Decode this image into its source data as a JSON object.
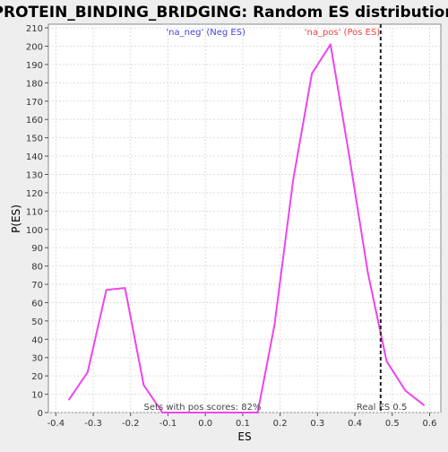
{
  "chart_data": {
    "type": "line",
    "title": "PROTEIN_BINDING_BRIDGING: Random ES distribution",
    "xlabel": "ES",
    "ylabel": "P(ES)",
    "xlim": [
      -0.42,
      0.63
    ],
    "ylim": [
      0,
      212
    ],
    "x_ticks": [
      -0.4,
      -0.3,
      -0.2,
      -0.1,
      0.0,
      0.1,
      0.2,
      0.3,
      0.4,
      0.5,
      0.6
    ],
    "x_tick_labels": [
      "-0.4",
      "-0.3",
      "-0.2",
      "-0.1",
      "0.0",
      "0.1",
      "0.2",
      "0.3",
      "0.4",
      "0.5",
      "0.6"
    ],
    "y_ticks": [
      0,
      10,
      20,
      30,
      40,
      50,
      60,
      70,
      80,
      90,
      100,
      110,
      120,
      130,
      140,
      150,
      160,
      170,
      180,
      190,
      200,
      210
    ],
    "grid": true,
    "series": [
      {
        "color": "#ee44ee",
        "x": [
          -0.365,
          -0.315,
          -0.265,
          -0.215,
          -0.165,
          -0.115,
          -0.065,
          -0.015,
          0.035,
          0.085,
          0.14,
          0.185,
          0.235,
          0.285,
          0.335,
          0.385,
          0.435,
          0.485,
          0.535,
          0.585
        ],
        "y": [
          7,
          22,
          67,
          68,
          15,
          0,
          0,
          0,
          0,
          0,
          0,
          48,
          127,
          185,
          201,
          140,
          76,
          28,
          12,
          4
        ]
      }
    ],
    "legend": [
      {
        "text": "'na_neg' (Neg ES)",
        "color": "#4444dd",
        "x": -0.105
      },
      {
        "text": "'na_pos' (Pos ES)",
        "color": "#ee4444",
        "x": 0.265
      }
    ],
    "vline": {
      "x": 0.469,
      "label": "Real ES 0.5"
    },
    "annotation": "Sets with pos scores: 82%"
  }
}
